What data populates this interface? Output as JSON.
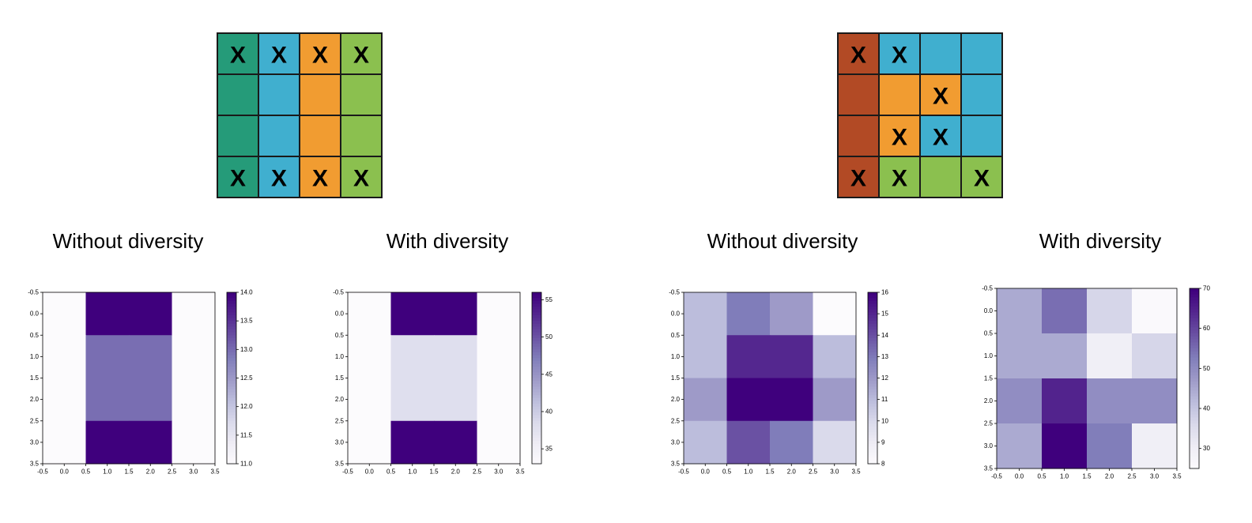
{
  "grids": [
    {
      "colors": [
        "#259b79",
        "#40afcf",
        "#f19c31",
        "#8bc04f",
        "#b24a25"
      ],
      "cells": [
        [
          0,
          1,
          2,
          3
        ],
        [
          0,
          1,
          2,
          3
        ],
        [
          0,
          1,
          2,
          3
        ],
        [
          0,
          1,
          2,
          3
        ]
      ],
      "marks": [
        [
          1,
          1,
          1,
          1
        ],
        [
          0,
          0,
          0,
          0
        ],
        [
          0,
          0,
          0,
          0
        ],
        [
          1,
          1,
          1,
          1
        ]
      ],
      "mark_text": "X"
    },
    {
      "colors": [
        "#259b79",
        "#40afcf",
        "#f19c31",
        "#8bc04f",
        "#b24a25"
      ],
      "cells": [
        [
          4,
          1,
          1,
          1
        ],
        [
          4,
          2,
          2,
          1
        ],
        [
          4,
          2,
          1,
          1
        ],
        [
          4,
          3,
          3,
          3
        ]
      ],
      "marks": [
        [
          1,
          1,
          0,
          0
        ],
        [
          0,
          0,
          1,
          0
        ],
        [
          0,
          1,
          1,
          0
        ],
        [
          1,
          1,
          0,
          1
        ]
      ],
      "mark_text": "X"
    }
  ],
  "chart_data": [
    {
      "type": "heatmap",
      "title": "Without diversity",
      "colormap": "Purples",
      "values": [
        [
          11,
          14,
          14,
          11
        ],
        [
          11,
          13,
          13,
          11
        ],
        [
          11,
          13,
          13,
          11
        ],
        [
          11,
          14,
          14,
          11
        ]
      ],
      "vmin": 11,
      "vmax": 14,
      "xlim": [
        -0.5,
        3.5
      ],
      "ylim": [
        3.5,
        -0.5
      ],
      "ticks": [
        "-0.5",
        "0.0",
        "0.5",
        "1.0",
        "1.5",
        "2.0",
        "2.5",
        "3.0",
        "3.5"
      ],
      "colorbar_ticks": [
        "11.0",
        "11.5",
        "12.0",
        "12.5",
        "13.0",
        "13.5",
        "14.0"
      ]
    },
    {
      "type": "heatmap",
      "title": "With diversity",
      "colormap": "Purples",
      "values": [
        [
          33,
          56,
          56,
          33
        ],
        [
          33,
          38,
          38,
          33
        ],
        [
          33,
          38,
          38,
          33
        ],
        [
          33,
          56,
          56,
          33
        ]
      ],
      "vmin": 33,
      "vmax": 56,
      "xlim": [
        -0.5,
        3.5
      ],
      "ylim": [
        3.5,
        -0.5
      ],
      "ticks": [
        "-0.5",
        "0.0",
        "0.5",
        "1.0",
        "1.5",
        "2.0",
        "2.5",
        "3.0",
        "3.5"
      ],
      "colorbar_ticks": [
        "35",
        "40",
        "45",
        "50",
        "55"
      ]
    },
    {
      "type": "heatmap",
      "title": "Without diversity",
      "colormap": "Purples",
      "values": [
        [
          11,
          13,
          12,
          8
        ],
        [
          11,
          15,
          15,
          11
        ],
        [
          12,
          16,
          16,
          12
        ],
        [
          11,
          14,
          13,
          10
        ]
      ],
      "vmin": 8,
      "vmax": 16,
      "xlim": [
        -0.5,
        3.5
      ],
      "ylim": [
        3.5,
        -0.5
      ],
      "ticks": [
        "-0.5",
        "0.0",
        "0.5",
        "1.0",
        "1.5",
        "2.0",
        "2.5",
        "3.0",
        "3.5"
      ],
      "colorbar_ticks": [
        "8",
        "9",
        "10",
        "11",
        "12",
        "13",
        "14",
        "15",
        "16"
      ]
    },
    {
      "type": "heatmap",
      "title": "With diversity",
      "colormap": "Purples",
      "values": [
        [
          45,
          55,
          37,
          26
        ],
        [
          45,
          45,
          30,
          37
        ],
        [
          50,
          65,
          50,
          50
        ],
        [
          45,
          70,
          53,
          30
        ]
      ],
      "vmin": 25,
      "vmax": 70,
      "xlim": [
        -0.5,
        3.5
      ],
      "ylim": [
        3.5,
        -0.5
      ],
      "ticks": [
        "-0.5",
        "0.0",
        "0.5",
        "1.0",
        "1.5",
        "2.0",
        "2.5",
        "3.0",
        "3.5"
      ],
      "colorbar_ticks": [
        "30",
        "40",
        "50",
        "60",
        "70"
      ]
    }
  ]
}
